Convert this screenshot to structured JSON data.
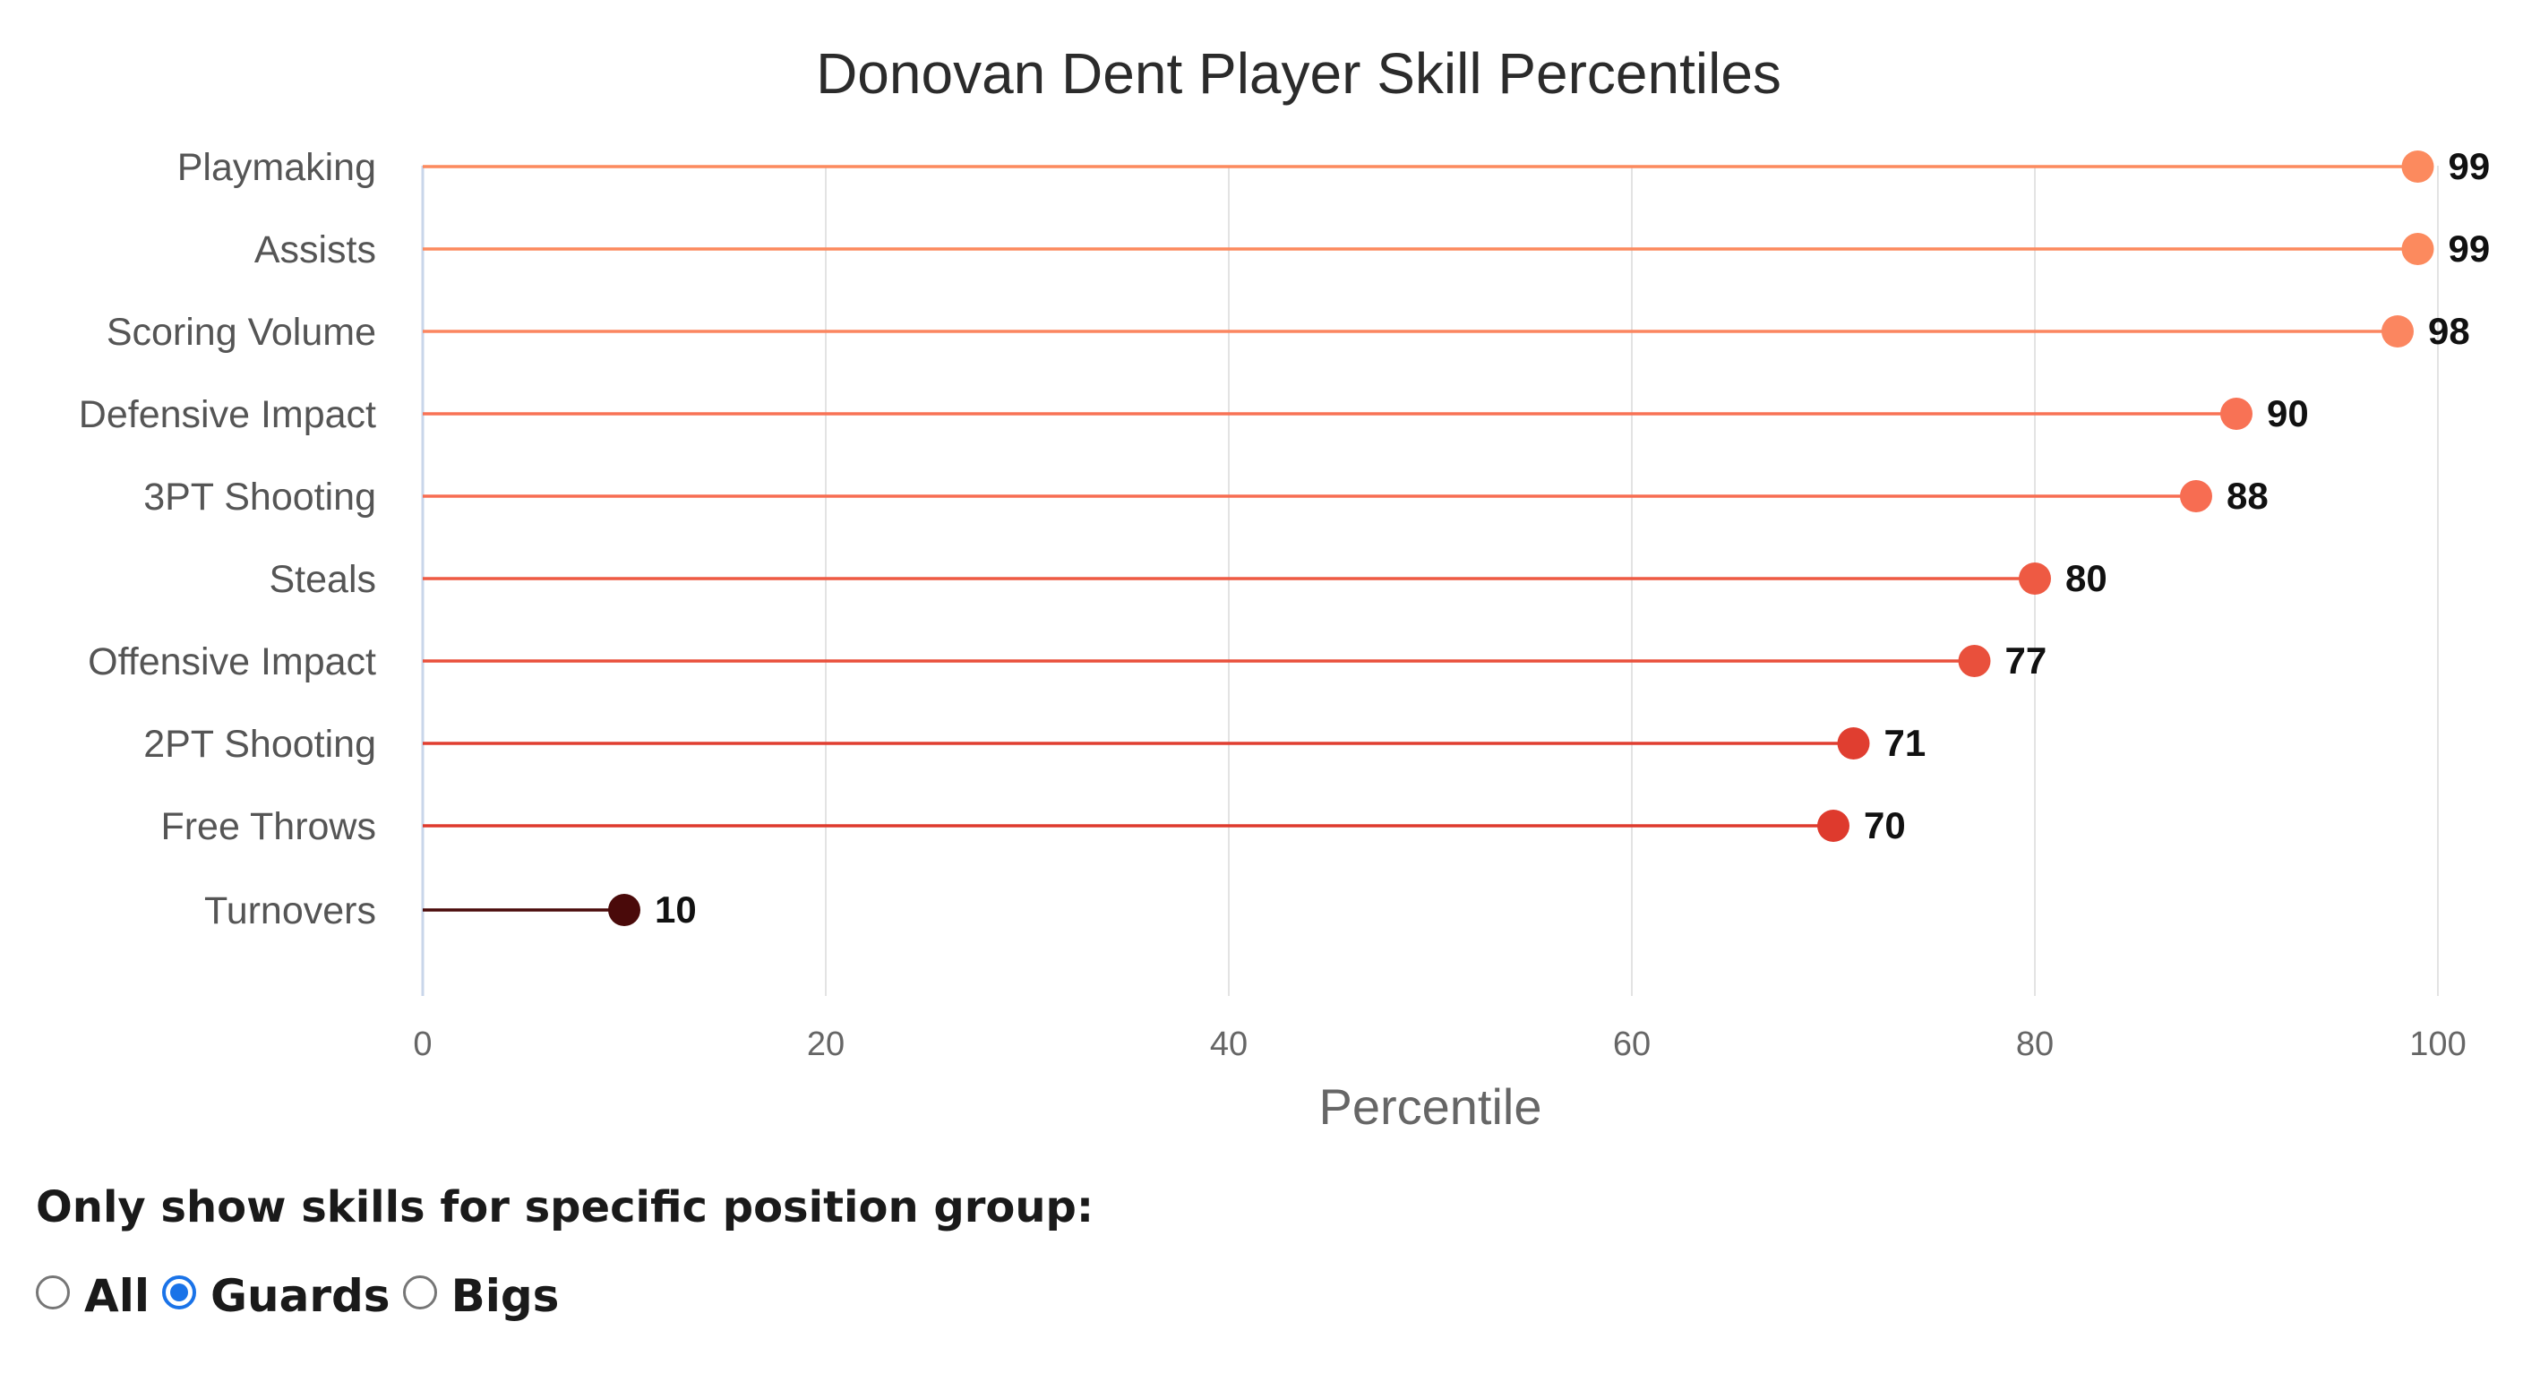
{
  "chart_data": {
    "type": "lollipop",
    "title": "Donovan Dent Player Skill Percentiles",
    "xlabel": "Percentile",
    "ylabel": "",
    "xlim": [
      0,
      100
    ],
    "xticks": [
      0,
      20,
      40,
      60,
      80,
      100
    ],
    "grid": true,
    "categories": [
      "Playmaking",
      "Assists",
      "Scoring Volume",
      "Defensive Impact",
      "3PT Shooting",
      "Steals",
      "Offensive Impact",
      "2PT Shooting",
      "Free Throws",
      "Turnovers"
    ],
    "values": [
      99,
      99,
      98,
      90,
      88,
      80,
      77,
      71,
      70,
      10
    ],
    "colors": [
      "#fc8a5e",
      "#fc8a5e",
      "#fb8660",
      "#f87255",
      "#f76d52",
      "#ee5a43",
      "#e9503c",
      "#e03e30",
      "#de3a2d",
      "#4a0a0a"
    ]
  },
  "controls": {
    "prompt": "Only show skills for specific position group:",
    "options": [
      {
        "label": "All",
        "checked": false
      },
      {
        "label": "Guards",
        "checked": true
      },
      {
        "label": "Bigs",
        "checked": false
      }
    ]
  }
}
